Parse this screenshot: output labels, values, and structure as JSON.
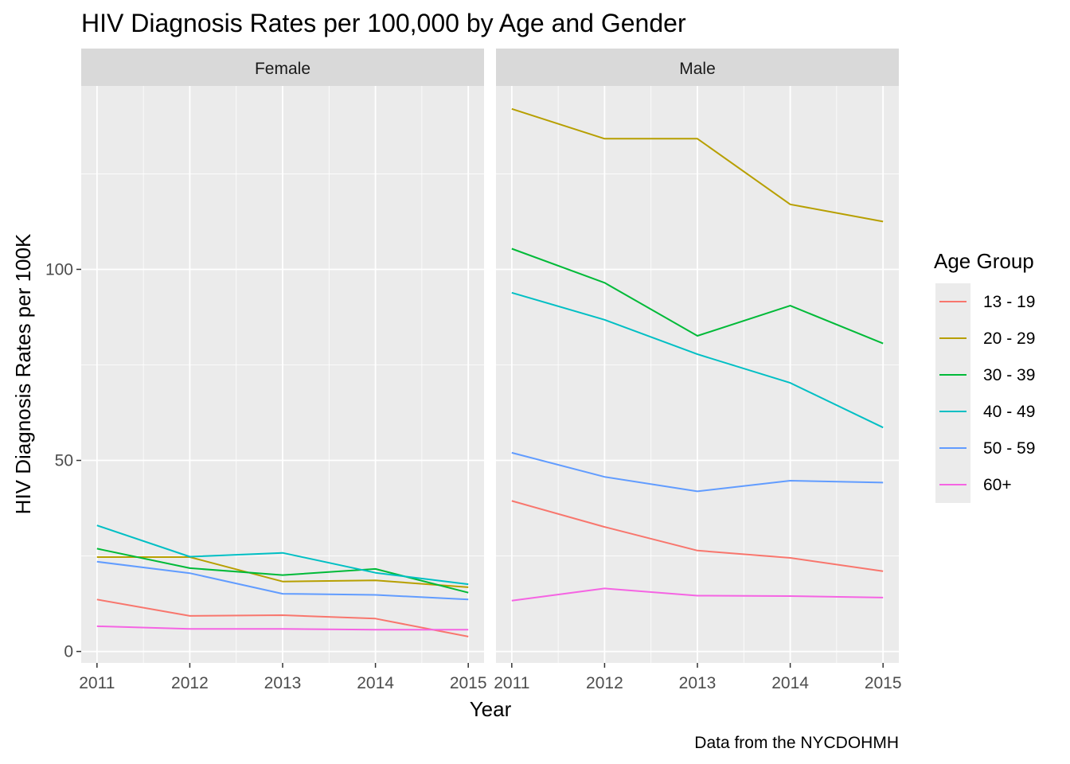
{
  "chart_data": {
    "type": "line",
    "title": "HIV Diagnosis Rates per 100,000 by Age and Gender",
    "xlabel": "Year",
    "ylabel": "HIV Diagnosis Rates per 100K",
    "caption": "Data from the NYCDOHMH",
    "x": [
      2011,
      2012,
      2013,
      2014,
      2015
    ],
    "xlim": [
      2010.83,
      2015.17
    ],
    "ylim": [
      -3,
      148
    ],
    "yticks": [
      0,
      50,
      100
    ],
    "grid": true,
    "legend": {
      "title": "Age Group",
      "placement": "right",
      "entries": [
        "13 - 19",
        "20 - 29",
        "30 - 39",
        "40 - 49",
        "50 - 59",
        "60+"
      ]
    },
    "colors": {
      "13 - 19": "#F8766D",
      "20 - 29": "#B79F00",
      "30 - 39": "#00BA38",
      "40 - 49": "#00BFC4",
      "50 - 59": "#619CFF",
      "60+": "#F564E3"
    },
    "panels": [
      {
        "name": "Female",
        "series": [
          {
            "name": "13 - 19",
            "values": [
              13.6,
              9.3,
              9.5,
              8.6,
              3.9
            ]
          },
          {
            "name": "20 - 29",
            "values": [
              24.7,
              24.7,
              18.3,
              18.6,
              16.8
            ]
          },
          {
            "name": "30 - 39",
            "values": [
              26.9,
              21.8,
              20.0,
              21.6,
              15.4
            ]
          },
          {
            "name": "40 - 49",
            "values": [
              33.0,
              24.8,
              25.8,
              20.6,
              17.6
            ]
          },
          {
            "name": "50 - 59",
            "values": [
              23.5,
              20.5,
              15.1,
              14.8,
              13.6
            ]
          },
          {
            "name": "60+",
            "values": [
              6.6,
              5.9,
              5.9,
              5.7,
              5.7
            ]
          }
        ]
      },
      {
        "name": "Male",
        "series": [
          {
            "name": "13 - 19",
            "values": [
              39.4,
              32.6,
              26.4,
              24.5,
              21.0
            ]
          },
          {
            "name": "20 - 29",
            "values": [
              142.0,
              134.2,
              134.2,
              117.0,
              112.5
            ]
          },
          {
            "name": "30 - 39",
            "values": [
              105.4,
              96.5,
              82.6,
              90.5,
              80.6
            ]
          },
          {
            "name": "40 - 49",
            "values": [
              93.9,
              86.8,
              77.8,
              70.3,
              58.6
            ]
          },
          {
            "name": "50 - 59",
            "values": [
              52.0,
              45.7,
              41.9,
              44.7,
              44.2
            ]
          },
          {
            "name": "60+",
            "values": [
              13.3,
              16.5,
              14.6,
              14.5,
              14.1
            ]
          }
        ]
      }
    ]
  }
}
